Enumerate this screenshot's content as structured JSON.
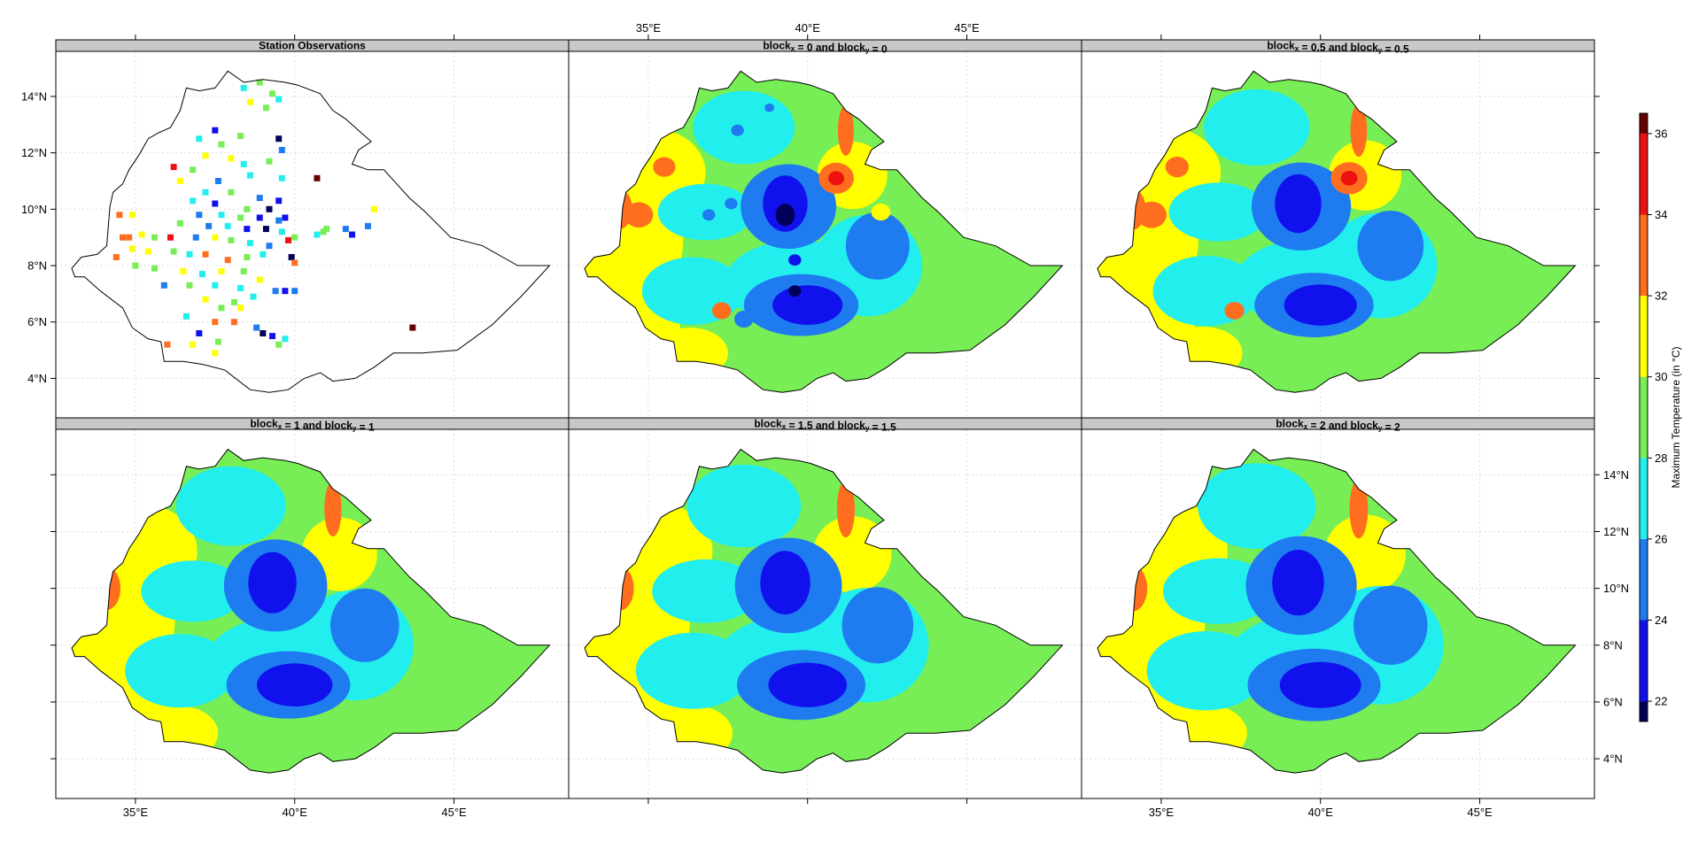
{
  "chart_data": {
    "type": "heatmap",
    "region": "Ethiopia",
    "panel_count": 6,
    "panels": [
      {
        "title": "Station Observations",
        "kind": "stations"
      },
      {
        "title_main": "block",
        "title_connector": "and",
        "param_value": "0"
      },
      {
        "title_main": "block",
        "title_connector": "and",
        "param_value": "0.5"
      },
      {
        "title_main": "block",
        "title_connector": "and",
        "param_value": "1"
      },
      {
        "title_main": "block",
        "title_connector": "and",
        "param_value": "1.5"
      },
      {
        "title_main": "block",
        "title_connector": "and",
        "param_value": "2"
      }
    ],
    "subscripts": {
      "x": "x",
      "y": "y"
    },
    "x_axis": {
      "ticks": [
        35,
        40,
        45
      ],
      "tick_labels": [
        "35°E",
        "40°E",
        "45°E"
      ],
      "range": [
        32.5,
        48.6
      ]
    },
    "y_axis": {
      "ticks": [
        4,
        6,
        8,
        10,
        12,
        14
      ],
      "tick_labels": [
        "4°N",
        "6°N",
        "8°N",
        "10°N",
        "12°N",
        "14°N"
      ],
      "range": [
        2.6,
        15.6
      ]
    },
    "grid": true,
    "colorbar": {
      "label": "Maximum Temperature (in °C)",
      "range": [
        21.5,
        36.5
      ],
      "ticks": [
        22,
        24,
        26,
        28,
        30,
        32,
        34,
        36
      ],
      "tick_labels": [
        "22",
        "24",
        "26",
        "28",
        "30",
        "32",
        "34",
        "36"
      ],
      "bins": [
        {
          "from": 21.5,
          "to": 22,
          "color": "#00005a"
        },
        {
          "from": 22,
          "to": 24,
          "color": "#1111ee"
        },
        {
          "from": 24,
          "to": 26,
          "color": "#1e7bf0"
        },
        {
          "from": 26,
          "to": 28,
          "color": "#22eeee"
        },
        {
          "from": 28,
          "to": 30,
          "color": "#77ee55"
        },
        {
          "from": 30,
          "to": 32,
          "color": "#ffff00"
        },
        {
          "from": 32,
          "to": 34,
          "color": "#ff6e1e"
        },
        {
          "from": 34,
          "to": 36,
          "color": "#ee1111"
        },
        {
          "from": 36,
          "to": 36.5,
          "color": "#660000"
        }
      ]
    },
    "background_field": 28,
    "field_blobs": [
      {
        "lon": 34.3,
        "lat": 9.0,
        "rx": 1.8,
        "ry": 2.8,
        "value": 30.5
      },
      {
        "lon": 35.0,
        "lat": 11.3,
        "rx": 1.8,
        "ry": 1.6,
        "value": 30.5
      },
      {
        "lon": 34.5,
        "lat": 5.8,
        "rx": 1.5,
        "ry": 1.3,
        "value": 30.5
      },
      {
        "lon": 36.3,
        "lat": 4.9,
        "rx": 1.2,
        "ry": 0.9,
        "value": 30.5
      },
      {
        "lon": 37.1,
        "lat": 7.5,
        "rx": 0.6,
        "ry": 0.6,
        "value": 30.5
      },
      {
        "lon": 41.4,
        "lat": 11.2,
        "rx": 1.1,
        "ry": 1.2,
        "value": 30.5
      },
      {
        "lon": 38.0,
        "lat": 12.9,
        "rx": 1.6,
        "ry": 1.3,
        "value": 27
      },
      {
        "lon": 36.8,
        "lat": 9.9,
        "rx": 1.5,
        "ry": 1.0,
        "value": 27
      },
      {
        "lon": 36.4,
        "lat": 7.1,
        "rx": 1.6,
        "ry": 1.2,
        "value": 27
      },
      {
        "lon": 41.9,
        "lat": 8.0,
        "rx": 1.7,
        "ry": 1.8,
        "value": 27
      },
      {
        "lon": 39.7,
        "lat": 7.4,
        "rx": 2.3,
        "ry": 1.5,
        "value": 27
      },
      {
        "lon": 39.4,
        "lat": 10.1,
        "rx": 1.5,
        "ry": 1.5,
        "value": 25
      },
      {
        "lon": 42.2,
        "lat": 8.7,
        "rx": 1.0,
        "ry": 1.2,
        "value": 25
      },
      {
        "lon": 39.8,
        "lat": 6.6,
        "rx": 1.8,
        "ry": 1.1,
        "value": 25
      },
      {
        "lon": 39.3,
        "lat": 10.2,
        "rx": 0.7,
        "ry": 1.0,
        "value": 23
      },
      {
        "lon": 40.0,
        "lat": 6.6,
        "rx": 1.1,
        "ry": 0.7,
        "value": 23
      },
      {
        "lon": 41.2,
        "lat": 12.8,
        "rx": 0.25,
        "ry": 0.9,
        "value": 33
      },
      {
        "lon": 34.1,
        "lat": 10.0,
        "rx": 0.4,
        "ry": 0.7,
        "value": 33
      }
    ],
    "extra_blobs_block0": [
      {
        "lon": 40.9,
        "lat": 11.1,
        "rx": 0.55,
        "ry": 0.55,
        "value": 33
      },
      {
        "lon": 40.9,
        "lat": 11.1,
        "rx": 0.25,
        "ry": 0.25,
        "value": 35
      },
      {
        "lon": 34.7,
        "lat": 9.8,
        "rx": 0.45,
        "ry": 0.45,
        "value": 33
      },
      {
        "lon": 35.5,
        "lat": 11.5,
        "rx": 0.35,
        "ry": 0.35,
        "value": 33
      },
      {
        "lon": 35.2,
        "lat": 5.1,
        "rx": 0.3,
        "ry": 0.3,
        "value": 33
      },
      {
        "lon": 37.3,
        "lat": 6.4,
        "rx": 0.3,
        "ry": 0.3,
        "value": 33
      },
      {
        "lon": 37.8,
        "lat": 12.8,
        "rx": 0.2,
        "ry": 0.2,
        "value": 25
      },
      {
        "lon": 38.8,
        "lat": 13.6,
        "rx": 0.15,
        "ry": 0.15,
        "value": 25
      },
      {
        "lon": 37.6,
        "lat": 10.2,
        "rx": 0.2,
        "ry": 0.2,
        "value": 25
      },
      {
        "lon": 36.9,
        "lat": 9.8,
        "rx": 0.2,
        "ry": 0.2,
        "value": 25
      },
      {
        "lon": 39.6,
        "lat": 8.2,
        "rx": 0.2,
        "ry": 0.2,
        "value": 23
      },
      {
        "lon": 38.0,
        "lat": 6.1,
        "rx": 0.3,
        "ry": 0.3,
        "value": 25
      },
      {
        "lon": 42.3,
        "lat": 9.9,
        "rx": 0.3,
        "ry": 0.3,
        "value": 30.5
      },
      {
        "lon": 39.6,
        "lat": 7.1,
        "rx": 0.2,
        "ry": 0.2,
        "value": 21.8
      },
      {
        "lon": 39.3,
        "lat": 9.8,
        "rx": 0.3,
        "ry": 0.4,
        "value": 21.8
      }
    ],
    "stations": [
      {
        "lon": 38.9,
        "lat": 14.5,
        "value": 29
      },
      {
        "lon": 38.4,
        "lat": 14.3,
        "value": 27
      },
      {
        "lon": 39.3,
        "lat": 14.1,
        "value": 29
      },
      {
        "lon": 39.5,
        "lat": 13.9,
        "value": 27
      },
      {
        "lon": 38.6,
        "lat": 13.8,
        "value": 31
      },
      {
        "lon": 39.1,
        "lat": 13.6,
        "value": 29
      },
      {
        "lon": 37.5,
        "lat": 12.8,
        "value": 23
      },
      {
        "lon": 37.0,
        "lat": 12.5,
        "value": 27
      },
      {
        "lon": 37.7,
        "lat": 12.3,
        "value": 29
      },
      {
        "lon": 38.3,
        "lat": 12.6,
        "value": 29
      },
      {
        "lon": 39.5,
        "lat": 12.5,
        "value": 21.8
      },
      {
        "lon": 39.6,
        "lat": 12.1,
        "value": 24
      },
      {
        "lon": 37.2,
        "lat": 11.9,
        "value": 31
      },
      {
        "lon": 38.0,
        "lat": 11.8,
        "value": 31
      },
      {
        "lon": 38.4,
        "lat": 11.6,
        "value": 27
      },
      {
        "lon": 39.2,
        "lat": 11.7,
        "value": 29
      },
      {
        "lon": 36.8,
        "lat": 11.4,
        "value": 29
      },
      {
        "lon": 36.2,
        "lat": 11.5,
        "value": 35
      },
      {
        "lon": 37.6,
        "lat": 11.0,
        "value": 25
      },
      {
        "lon": 38.6,
        "lat": 11.2,
        "value": 27
      },
      {
        "lon": 39.6,
        "lat": 11.1,
        "value": 27
      },
      {
        "lon": 40.7,
        "lat": 11.1,
        "value": 36.3
      },
      {
        "lon": 36.4,
        "lat": 11.0,
        "value": 31
      },
      {
        "lon": 37.2,
        "lat": 10.6,
        "value": 27
      },
      {
        "lon": 38.0,
        "lat": 10.6,
        "value": 29
      },
      {
        "lon": 38.9,
        "lat": 10.4,
        "value": 25
      },
      {
        "lon": 39.5,
        "lat": 10.3,
        "value": 23
      },
      {
        "lon": 36.8,
        "lat": 10.3,
        "value": 27
      },
      {
        "lon": 37.5,
        "lat": 10.2,
        "value": 23
      },
      {
        "lon": 38.5,
        "lat": 10.0,
        "value": 29
      },
      {
        "lon": 39.2,
        "lat": 10.0,
        "value": 21.8
      },
      {
        "lon": 39.7,
        "lat": 9.7,
        "value": 23
      },
      {
        "lon": 42.5,
        "lat": 10.0,
        "value": 31
      },
      {
        "lon": 37.0,
        "lat": 9.8,
        "value": 25
      },
      {
        "lon": 37.7,
        "lat": 9.8,
        "value": 27
      },
      {
        "lon": 38.3,
        "lat": 9.7,
        "value": 29
      },
      {
        "lon": 38.9,
        "lat": 9.7,
        "value": 23
      },
      {
        "lon": 39.5,
        "lat": 9.6,
        "value": 25
      },
      {
        "lon": 34.5,
        "lat": 9.8,
        "value": 33
      },
      {
        "lon": 34.9,
        "lat": 9.8,
        "value": 31
      },
      {
        "lon": 36.4,
        "lat": 9.5,
        "value": 29
      },
      {
        "lon": 37.3,
        "lat": 9.4,
        "value": 24
      },
      {
        "lon": 37.9,
        "lat": 9.4,
        "value": 27
      },
      {
        "lon": 38.5,
        "lat": 9.3,
        "value": 23
      },
      {
        "lon": 39.1,
        "lat": 9.3,
        "value": 21.8
      },
      {
        "lon": 39.6,
        "lat": 9.2,
        "value": 27
      },
      {
        "lon": 40.0,
        "lat": 9.0,
        "value": 29
      },
      {
        "lon": 40.7,
        "lat": 9.1,
        "value": 27
      },
      {
        "lon": 40.9,
        "lat": 9.2,
        "value": 29
      },
      {
        "lon": 41.6,
        "lat": 9.3,
        "value": 24
      },
      {
        "lon": 41.8,
        "lat": 9.1,
        "value": 23
      },
      {
        "lon": 42.3,
        "lat": 9.4,
        "value": 25
      },
      {
        "lon": 34.6,
        "lat": 9.0,
        "value": 33
      },
      {
        "lon": 34.8,
        "lat": 9.0,
        "value": 33
      },
      {
        "lon": 35.2,
        "lat": 9.1,
        "value": 31
      },
      {
        "lon": 35.6,
        "lat": 9.0,
        "value": 29
      },
      {
        "lon": 36.1,
        "lat": 9.0,
        "value": 35
      },
      {
        "lon": 36.9,
        "lat": 9.0,
        "value": 25
      },
      {
        "lon": 37.5,
        "lat": 9.0,
        "value": 31
      },
      {
        "lon": 38.0,
        "lat": 8.9,
        "value": 29
      },
      {
        "lon": 38.6,
        "lat": 8.8,
        "value": 27
      },
      {
        "lon": 39.2,
        "lat": 8.7,
        "value": 25
      },
      {
        "lon": 39.8,
        "lat": 8.9,
        "value": 35
      },
      {
        "lon": 34.9,
        "lat": 8.6,
        "value": 31
      },
      {
        "lon": 35.4,
        "lat": 8.5,
        "value": 31
      },
      {
        "lon": 34.4,
        "lat": 8.3,
        "value": 33
      },
      {
        "lon": 36.2,
        "lat": 8.5,
        "value": 29
      },
      {
        "lon": 36.7,
        "lat": 8.4,
        "value": 27
      },
      {
        "lon": 37.2,
        "lat": 8.4,
        "value": 33
      },
      {
        "lon": 37.9,
        "lat": 8.2,
        "value": 33
      },
      {
        "lon": 38.5,
        "lat": 8.3,
        "value": 29
      },
      {
        "lon": 39.0,
        "lat": 8.4,
        "value": 27
      },
      {
        "lon": 39.9,
        "lat": 8.3,
        "value": 21.8
      },
      {
        "lon": 40.0,
        "lat": 8.1,
        "value": 33
      },
      {
        "lon": 35.0,
        "lat": 8.0,
        "value": 29
      },
      {
        "lon": 35.6,
        "lat": 7.9,
        "value": 29
      },
      {
        "lon": 36.5,
        "lat": 7.8,
        "value": 31
      },
      {
        "lon": 37.1,
        "lat": 7.7,
        "value": 27
      },
      {
        "lon": 37.7,
        "lat": 7.8,
        "value": 31
      },
      {
        "lon": 38.4,
        "lat": 7.8,
        "value": 29
      },
      {
        "lon": 38.9,
        "lat": 7.5,
        "value": 31
      },
      {
        "lon": 35.9,
        "lat": 7.3,
        "value": 24
      },
      {
        "lon": 36.7,
        "lat": 7.3,
        "value": 29
      },
      {
        "lon": 37.5,
        "lat": 7.3,
        "value": 27
      },
      {
        "lon": 38.3,
        "lat": 7.2,
        "value": 27
      },
      {
        "lon": 39.4,
        "lat": 7.1,
        "value": 24
      },
      {
        "lon": 39.7,
        "lat": 7.1,
        "value": 23
      },
      {
        "lon": 40.0,
        "lat": 7.1,
        "value": 24
      },
      {
        "lon": 37.2,
        "lat": 6.8,
        "value": 31
      },
      {
        "lon": 38.1,
        "lat": 6.7,
        "value": 29
      },
      {
        "lon": 38.7,
        "lat": 6.9,
        "value": 27
      },
      {
        "lon": 37.7,
        "lat": 6.5,
        "value": 29
      },
      {
        "lon": 38.3,
        "lat": 6.5,
        "value": 31
      },
      {
        "lon": 36.6,
        "lat": 6.2,
        "value": 27
      },
      {
        "lon": 37.5,
        "lat": 6.0,
        "value": 33
      },
      {
        "lon": 38.1,
        "lat": 6.0,
        "value": 33
      },
      {
        "lon": 38.8,
        "lat": 5.8,
        "value": 25
      },
      {
        "lon": 39.0,
        "lat": 5.6,
        "value": 21.8
      },
      {
        "lon": 39.3,
        "lat": 5.5,
        "value": 23
      },
      {
        "lon": 37.0,
        "lat": 5.6,
        "value": 23
      },
      {
        "lon": 37.6,
        "lat": 5.3,
        "value": 29
      },
      {
        "lon": 39.7,
        "lat": 5.4,
        "value": 27
      },
      {
        "lon": 43.7,
        "lat": 5.8,
        "value": 36.3
      },
      {
        "lon": 36.0,
        "lat": 5.2,
        "value": 33
      },
      {
        "lon": 36.8,
        "lat": 5.2,
        "value": 31
      },
      {
        "lon": 37.5,
        "lat": 4.9,
        "value": 31
      },
      {
        "lon": 39.5,
        "lat": 5.2,
        "value": 29
      },
      {
        "lon": 41.0,
        "lat": 9.3,
        "value": 29
      }
    ]
  }
}
